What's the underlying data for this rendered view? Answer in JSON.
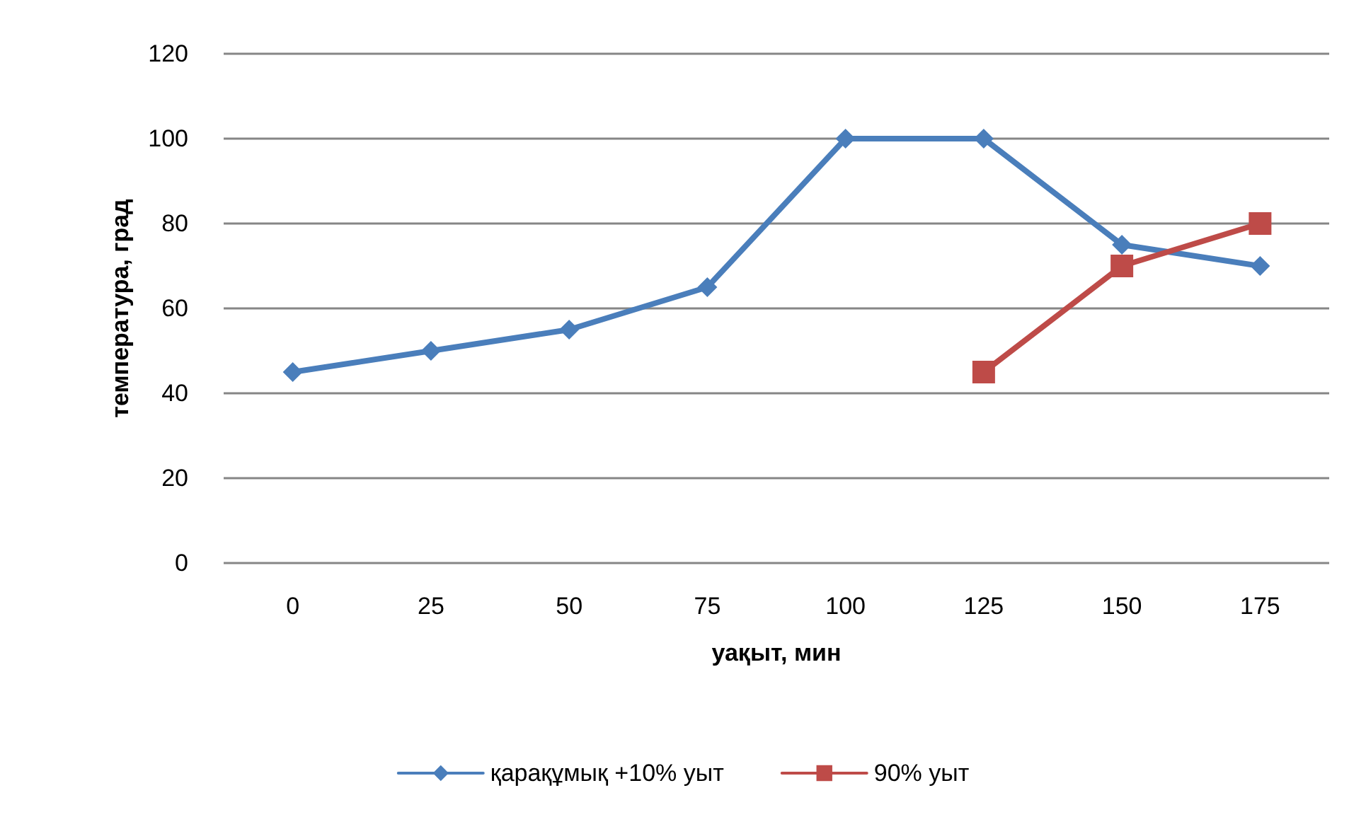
{
  "chart_data": {
    "type": "line",
    "xlabel": "уақыт, мин",
    "ylabel": "температура, град",
    "categories": [
      "0",
      "25",
      "50",
      "75",
      "100",
      "125",
      "150",
      "175"
    ],
    "series": [
      {
        "name": "қарақұмық +10% уыт",
        "color": "#4a7ebb",
        "marker": "diamond",
        "values": [
          45,
          50,
          55,
          65,
          100,
          100,
          75,
          70
        ]
      },
      {
        "name": "90% уыт",
        "color": "#be4b48",
        "marker": "square",
        "values": [
          null,
          null,
          null,
          null,
          null,
          45,
          70,
          80
        ]
      }
    ],
    "ylim": [
      0,
      120
    ],
    "yticks": [
      0,
      20,
      40,
      60,
      80,
      100,
      120
    ],
    "grid": "y",
    "legend": "bottom",
    "line_style": "solid"
  }
}
